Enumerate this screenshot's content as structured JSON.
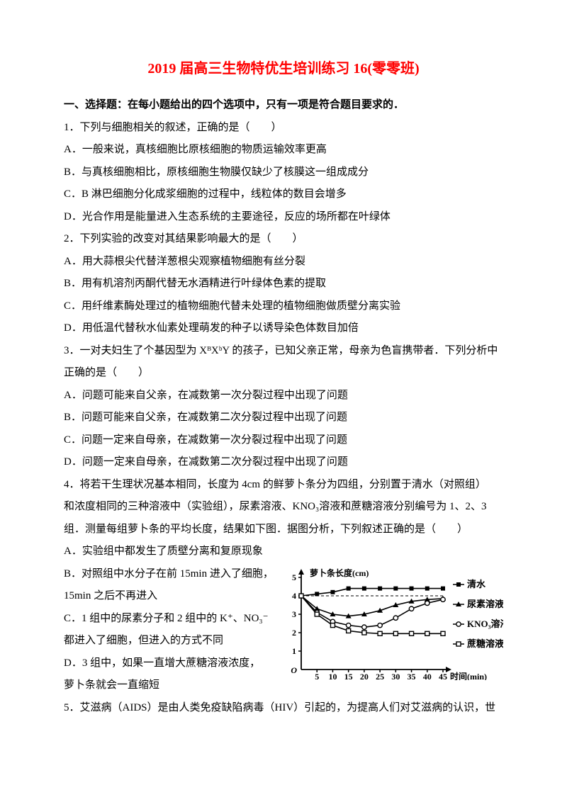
{
  "title": "2019 届高三生物特优生培训练习 16(零零班)",
  "title_color": "#ff0000",
  "section_header": "一、选择题：在每小题给出的四个选项中，只有一项是符合题目要求的．",
  "q1": {
    "stem": "1．下列与细胞相关的叙述，正确的是（　　）",
    "A": "A．一般来说，真核细胞比原核细胞的物质运输效率更高",
    "B": "B．与真核细胞相比，原核细胞生物膜仅缺少了核膜这一组成成分",
    "C": "C．B 淋巴细胞分化成浆细胞的过程中，线粒体的数目会增多",
    "D": "D．光合作用是能量进入生态系统的主要途径，反应的场所都在叶绿体"
  },
  "q2": {
    "stem": "2．下列实验的改变对其结果影响最大的是（　　）",
    "A": "A．用大蒜根尖代替洋葱根尖观察植物细胞有丝分裂",
    "B": "B．用有机溶剂丙酮代替无水酒精进行叶绿体色素的提取",
    "C": "C．用纤维素酶处理过的植物细胞代替未处理的植物细胞做质壁分离实验",
    "D": "D．用低温代替秋水仙素处理萌发的种子以诱导染色体数目加倍"
  },
  "q3": {
    "stem1": "3．一对夫妇生了个基因型为 XᴮXᵇY 的孩子，已知父亲正常，母亲为色盲携带者．下列分析中",
    "stem2": "正确的是（　　）",
    "A": "A．问题可能来自父亲，在减数第一次分裂过程中出现了问题",
    "B": "B．问题可能来自父亲，在减数第二次分裂过程中出现了问题",
    "C": "C．问题一定来自母亲，在减数第一次分裂过程中出现了问题",
    "D": "D．问题一定来自母亲，在减数第二次分裂过程中出现了问题"
  },
  "q4": {
    "stem1": "4．将若干生理状况基本相同，长度为 4cm 的鲜萝卜条分为四组，分别置于清水（对照组）",
    "stem2": "和浓度相同的三种溶液中（实验组），尿素溶液、KNO₃溶液和蔗糖溶液分别编号为 1、2、3",
    "stem3": "组．测量每组萝卜条的平均长度，结果如下图．据图分析，下列叙述正确的是（　　）",
    "A": "A．实验组中都发生了质壁分离和复原现象",
    "B1": "B．对照组中水分子在前 15min 进入了细胞，",
    "B2": "15min 之后不再进入",
    "C1": "C．1 组中的尿素分子和 2 组中的 K⁺、NO₃⁻",
    "C2": "都进入了细胞，但进入的方式不同",
    "D1": "D．3 组中，如果一直增大蔗糖溶液浓度，",
    "D2": "萝卜条就会一直缩短"
  },
  "q5": {
    "stem": "5．艾滋病（AIDS）是由人类免疫缺陷病毒（HIV）引起的，为提高人们对艾滋病的认识，世"
  },
  "chart": {
    "y_axis_label": "萝卜条长度(cm)",
    "x_axis_label": "时间(min)",
    "x_ticks": [
      "5",
      "10",
      "15",
      "20",
      "25",
      "30",
      "35",
      "40",
      "45"
    ],
    "y_ticks": [
      "1",
      "2",
      "3",
      "4",
      "5"
    ],
    "legend": {
      "water": "清水",
      "urea": "尿素溶液",
      "kno3": "KNO₃溶液",
      "sucrose": "蔗糖溶液"
    },
    "colors": {
      "axis": "#000000",
      "dashed": "#000000",
      "bg": "#ffffff"
    },
    "series": {
      "water": [
        [
          0,
          4.0
        ],
        [
          5,
          4.1
        ],
        [
          10,
          4.2
        ],
        [
          15,
          4.4
        ],
        [
          20,
          4.4
        ],
        [
          25,
          4.4
        ],
        [
          30,
          4.4
        ],
        [
          35,
          4.4
        ],
        [
          40,
          4.4
        ],
        [
          45,
          4.4
        ]
      ],
      "urea": [
        [
          0,
          4.0
        ],
        [
          5,
          3.3
        ],
        [
          10,
          3.0
        ],
        [
          15,
          2.9
        ],
        [
          20,
          3.0
        ],
        [
          25,
          3.2
        ],
        [
          30,
          3.5
        ],
        [
          35,
          3.7
        ],
        [
          40,
          3.8
        ],
        [
          45,
          3.85
        ]
      ],
      "kno3": [
        [
          0,
          4.0
        ],
        [
          5,
          3.1
        ],
        [
          10,
          2.6
        ],
        [
          15,
          2.4
        ],
        [
          20,
          2.3
        ],
        [
          25,
          2.4
        ],
        [
          30,
          2.8
        ],
        [
          35,
          3.3
        ],
        [
          40,
          3.6
        ],
        [
          45,
          3.8
        ]
      ],
      "sucrose": [
        [
          0,
          4.0
        ],
        [
          5,
          3.0
        ],
        [
          10,
          2.4
        ],
        [
          15,
          2.1
        ],
        [
          20,
          2.0
        ],
        [
          25,
          1.95
        ],
        [
          30,
          1.95
        ],
        [
          35,
          1.95
        ],
        [
          40,
          1.95
        ],
        [
          45,
          1.95
        ]
      ]
    }
  }
}
